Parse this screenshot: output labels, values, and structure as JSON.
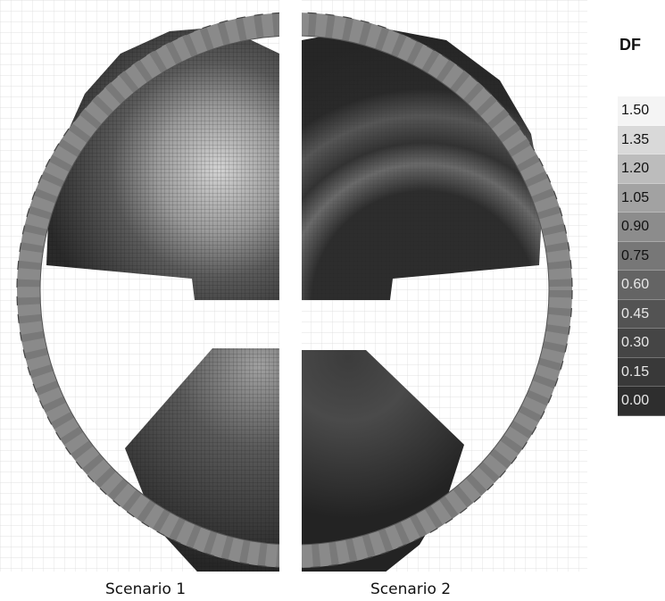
{
  "captions": {
    "scenario_1": "Scenario 1",
    "scenario_2": "Scenario 2"
  },
  "legend": {
    "title": "DF",
    "entries": [
      {
        "label": "1.50",
        "color": "#f4f4f4"
      },
      {
        "label": "1.35",
        "color": "#d9d9d9"
      },
      {
        "label": "1.20",
        "color": "#bcbcbc"
      },
      {
        "label": "1.05",
        "color": "#a2a2a2"
      },
      {
        "label": "0.90",
        "color": "#8c8c8c"
      },
      {
        "label": "0.75",
        "color": "#777777"
      },
      {
        "label": "0.60",
        "color": "#646464"
      },
      {
        "label": "0.45",
        "color": "#535353"
      },
      {
        "label": "0.30",
        "color": "#454545"
      },
      {
        "label": "0.15",
        "color": "#393939"
      },
      {
        "label": "0.00",
        "color": "#2e2e2e"
      }
    ]
  },
  "colors": {
    "rim": "#8a8a8a",
    "rim_outline": "#555555",
    "background_grid": "#d8d8d8",
    "dark_region": "#2c2c2c",
    "bright_region": "#b8b8b8"
  }
}
